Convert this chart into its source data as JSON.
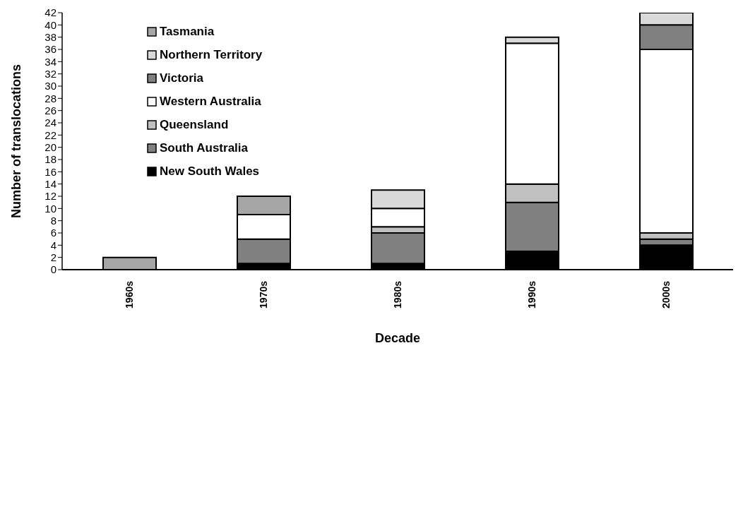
{
  "chart_data": {
    "type": "bar",
    "stacked": true,
    "xlabel": "Decade",
    "ylabel": "Number of translocations",
    "categories": [
      "1960s",
      "1970s",
      "1980s",
      "1990s",
      "2000s"
    ],
    "series": [
      {
        "name": "New South Wales",
        "color": "#000000",
        "values": [
          0,
          1,
          1,
          3,
          4
        ]
      },
      {
        "name": "South Australia",
        "color": "#808080",
        "values": [
          0,
          4,
          5,
          8,
          1
        ]
      },
      {
        "name": "Queensland",
        "color": "#c0c0c0",
        "values": [
          0,
          0,
          1,
          3,
          1
        ]
      },
      {
        "name": "Western Australia",
        "color": "#ffffff",
        "values": [
          0,
          4,
          3,
          23,
          30
        ]
      },
      {
        "name": "Victoria",
        "color": "#808080",
        "values": [
          0,
          0,
          0,
          0,
          4
        ]
      },
      {
        "name": "Northern Territory",
        "color": "#d9d9d9",
        "values": [
          0,
          0,
          3,
          1,
          2
        ]
      },
      {
        "name": "Tasmania",
        "color": "#a6a6a6",
        "values": [
          2,
          3,
          0,
          0,
          0
        ]
      }
    ],
    "ylim": [
      0,
      42
    ],
    "yticks": [
      0,
      2,
      4,
      6,
      8,
      10,
      12,
      14,
      16,
      18,
      20,
      22,
      24,
      26,
      28,
      30,
      32,
      34,
      36,
      38,
      40,
      42
    ],
    "grid": false,
    "legend": "top left"
  }
}
